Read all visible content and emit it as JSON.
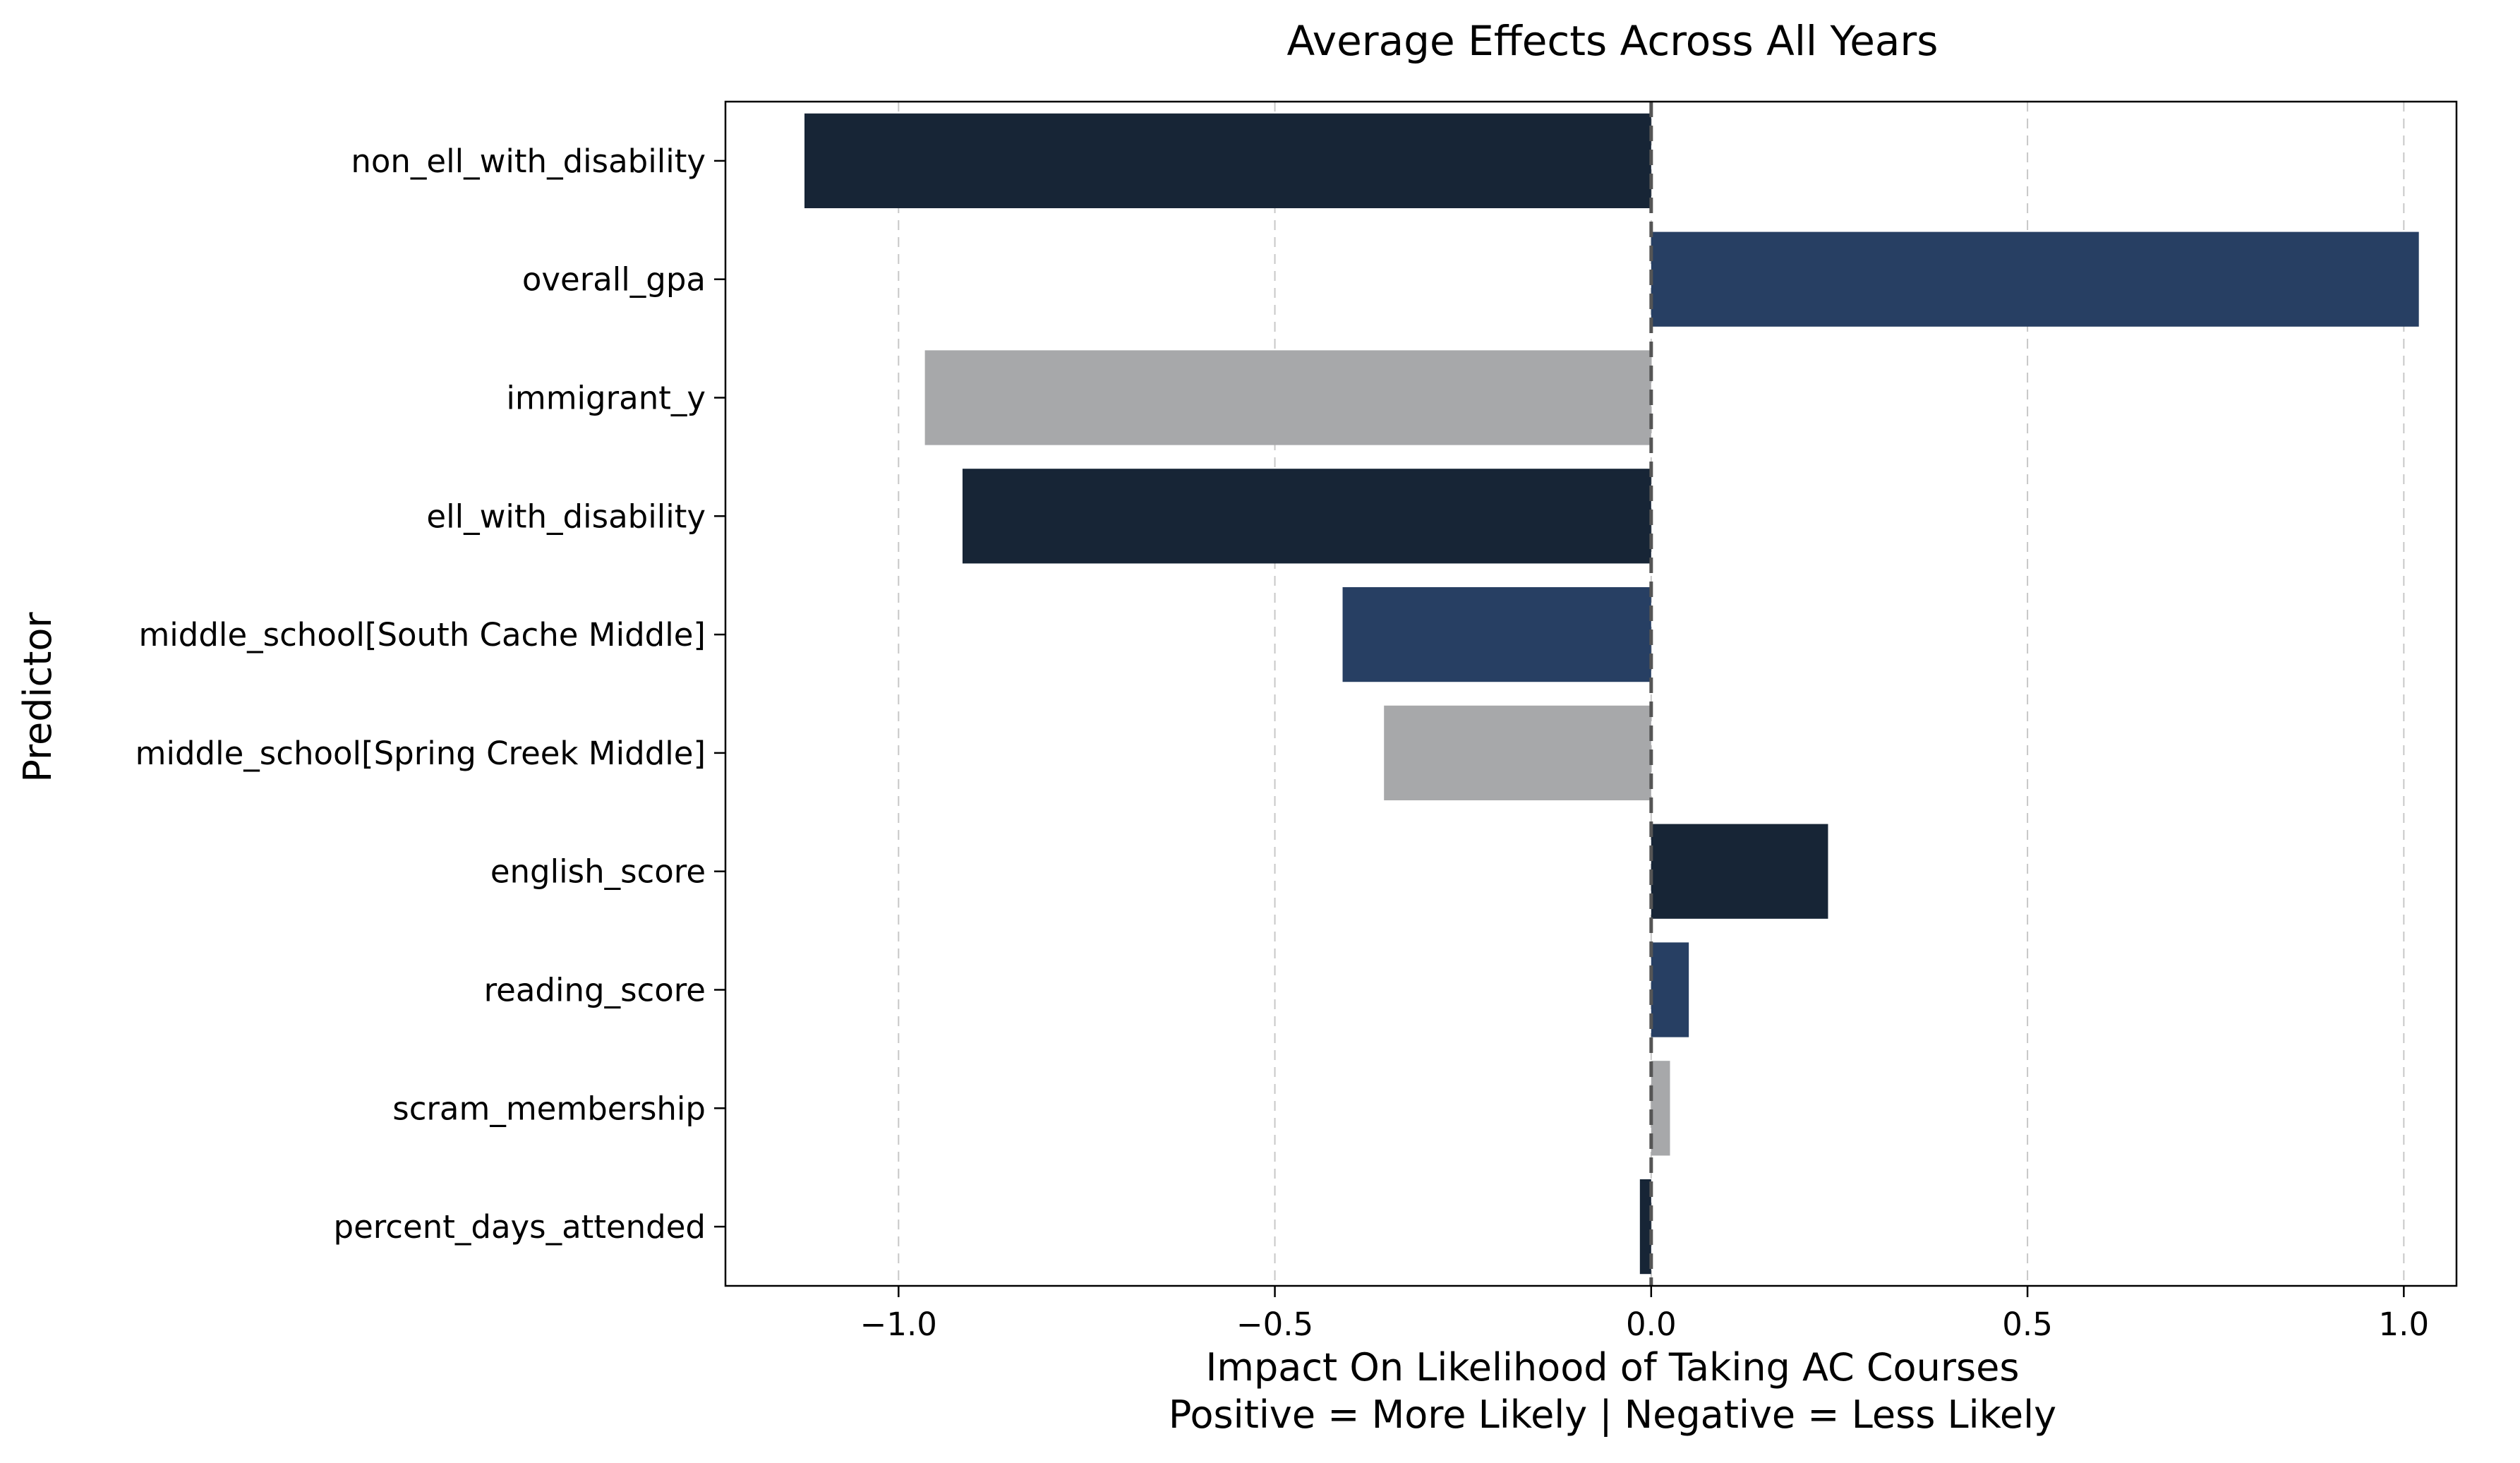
{
  "chart_data": {
    "type": "bar",
    "orientation": "horizontal",
    "title": "Average Effects Across All Years",
    "xlabel": "Impact On Likelihood of Taking AC Courses",
    "xlabel_line2": "Positive = More Likely | Negative = Less Likely",
    "ylabel": "Predictor",
    "xlim": [
      -1.23,
      1.07
    ],
    "xticks": [
      -1.0,
      -0.5,
      0.0,
      0.5,
      1.0
    ],
    "xtick_labels": [
      "−1.0",
      "−0.5",
      "0.0",
      "0.5",
      "1.0"
    ],
    "grid": "x-dashed",
    "zero_line": "dashed",
    "categories": [
      "non_ell_with_disability",
      "overall_gpa",
      "immigrant_y",
      "ell_with_disability",
      "middle_school[South Cache Middle]",
      "middle_school[Spring Creek Middle]",
      "english_score",
      "reading_score",
      "scram_membership",
      "percent_days_attended"
    ],
    "values": [
      -1.125,
      1.02,
      -0.965,
      -0.915,
      -0.41,
      -0.355,
      0.235,
      0.05,
      0.025,
      -0.015
    ],
    "colors": [
      "#172536",
      "#273f63",
      "#a7a8aa",
      "#172536",
      "#273f63",
      "#a7a8aa",
      "#172536",
      "#273f63",
      "#a7a8aa",
      "#172536"
    ]
  }
}
